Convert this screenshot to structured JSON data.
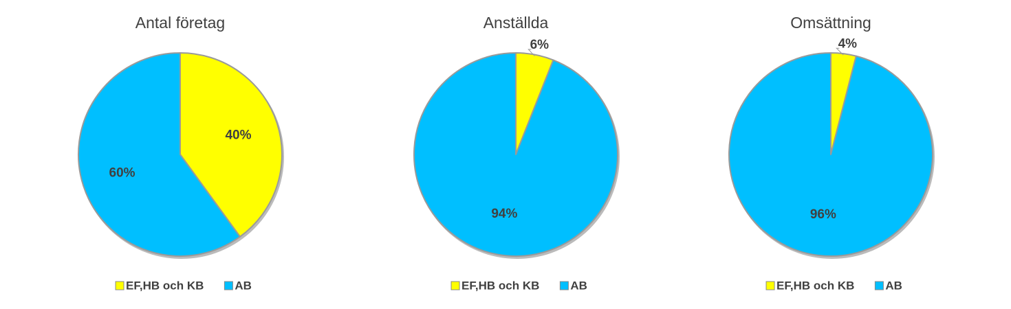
{
  "chart_data": [
    {
      "type": "pie",
      "title": "Antal företag",
      "categories": [
        "EF,HB och KB",
        "AB"
      ],
      "values": [
        40,
        60
      ],
      "value_labels": [
        "40%",
        "60%"
      ],
      "colors": [
        "#ffff00",
        "#00bfff"
      ],
      "legend": "bottom"
    },
    {
      "type": "pie",
      "title": "Anställda",
      "categories": [
        "EF,HB och KB",
        "AB"
      ],
      "values": [
        6,
        94
      ],
      "value_labels": [
        "6%",
        "94%"
      ],
      "colors": [
        "#ffff00",
        "#00bfff"
      ],
      "legend": "bottom"
    },
    {
      "type": "pie",
      "title": "Omsättning",
      "categories": [
        "EF,HB och KB",
        "AB"
      ],
      "values": [
        4,
        96
      ],
      "value_labels": [
        "4%",
        "96%"
      ],
      "colors": [
        "#ffff00",
        "#00bfff"
      ],
      "legend": "bottom"
    }
  ]
}
